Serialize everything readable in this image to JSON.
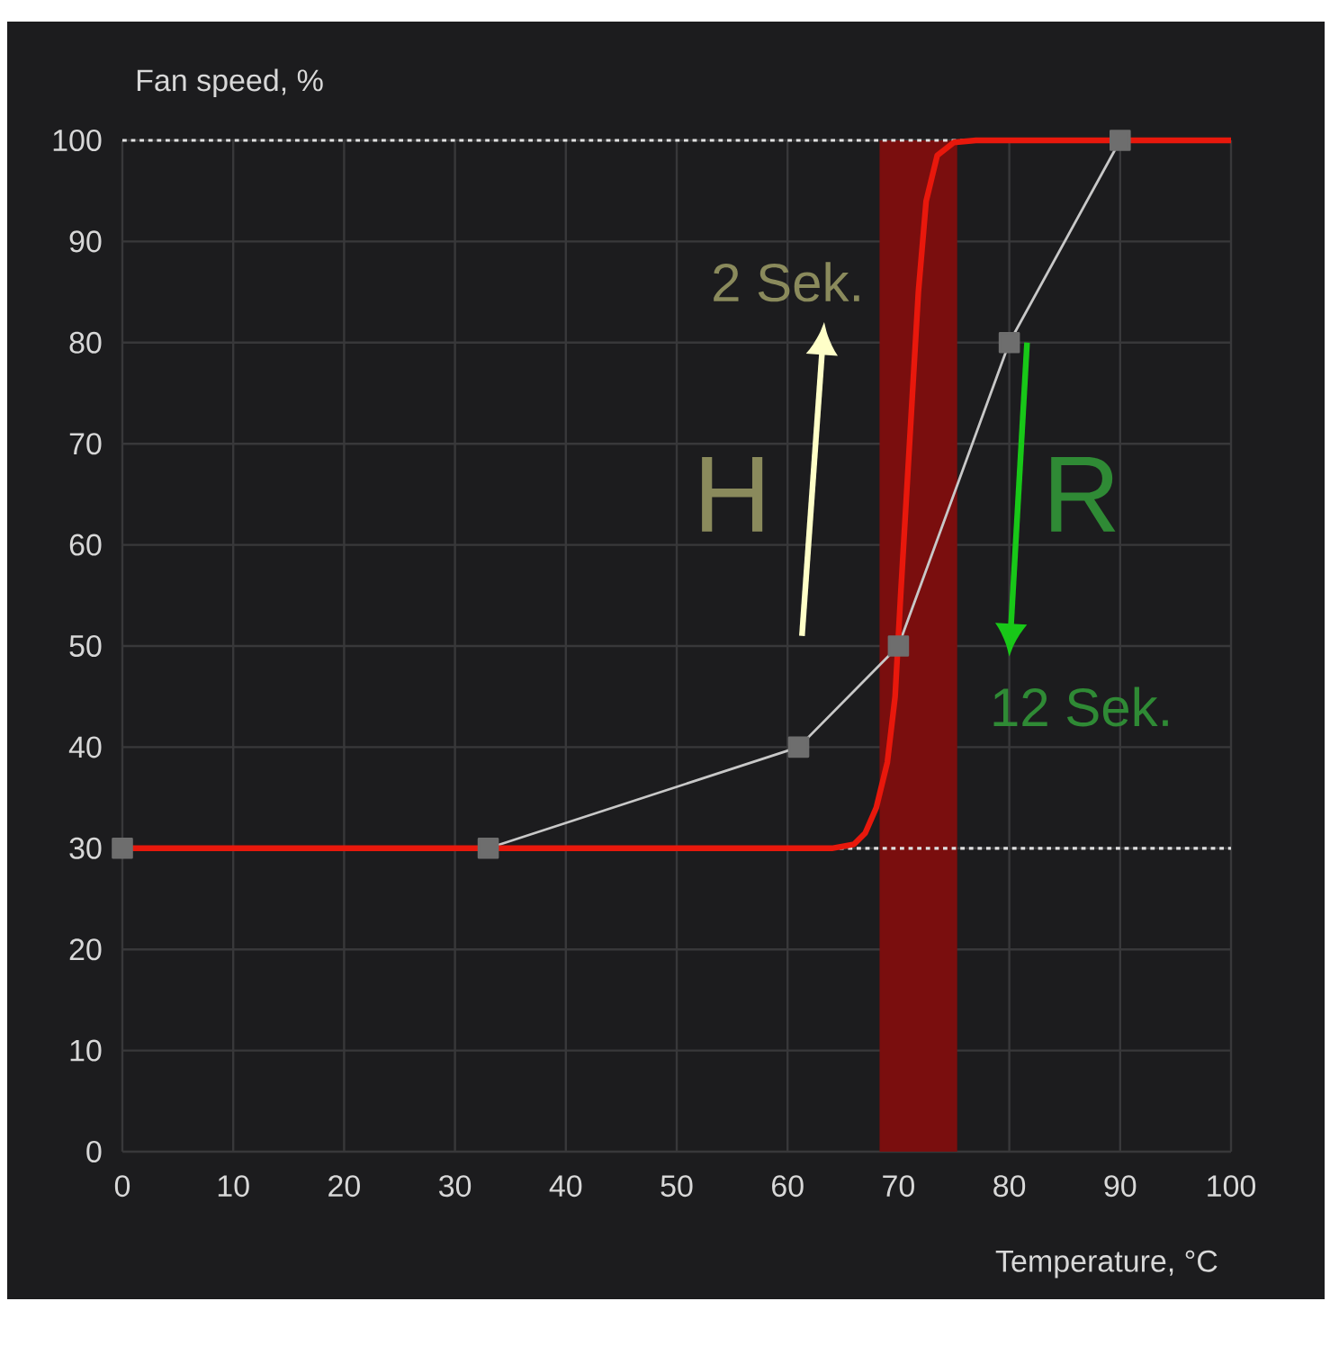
{
  "chart_data": {
    "type": "line",
    "xlabel": "Temperature, °C",
    "ylabel": "Fan speed, %",
    "xlim": [
      0,
      100
    ],
    "ylim": [
      0,
      100
    ],
    "xticks": [
      0,
      10,
      20,
      30,
      40,
      50,
      60,
      70,
      80,
      90,
      100
    ],
    "yticks": [
      0,
      10,
      20,
      30,
      40,
      50,
      60,
      70,
      80,
      90,
      100
    ],
    "grid": true,
    "series": [
      {
        "color": "#c8c8c8",
        "marker": "square",
        "x": [
          0,
          33,
          61,
          70,
          80,
          90
        ],
        "values": [
          30,
          30,
          40,
          50,
          80,
          100
        ]
      },
      {
        "color": "#e8180c",
        "marker": "none",
        "x": [
          0,
          64,
          66,
          67,
          68,
          69,
          69.7,
          70.2,
          71,
          71.8,
          72.5,
          73.5,
          75,
          77,
          100
        ],
        "values": [
          30,
          30,
          30.4,
          31.5,
          34,
          38.5,
          45,
          55,
          70,
          85,
          94,
          98.5,
          99.8,
          100,
          100
        ]
      }
    ],
    "ref_lines": [
      {
        "axis": "y",
        "value": 30,
        "color": "#e0e0e0",
        "line_style": "dotted"
      },
      {
        "axis": "y",
        "value": 100,
        "color": "#e0e0e0",
        "line_style": "dotted"
      }
    ],
    "bands": [
      {
        "axis": "x",
        "from": 68.3,
        "to": 75.3,
        "color": "#7a0e0e"
      }
    ],
    "annotations": [
      "2 Sek.",
      "H",
      "R",
      "12 Sek."
    ]
  }
}
